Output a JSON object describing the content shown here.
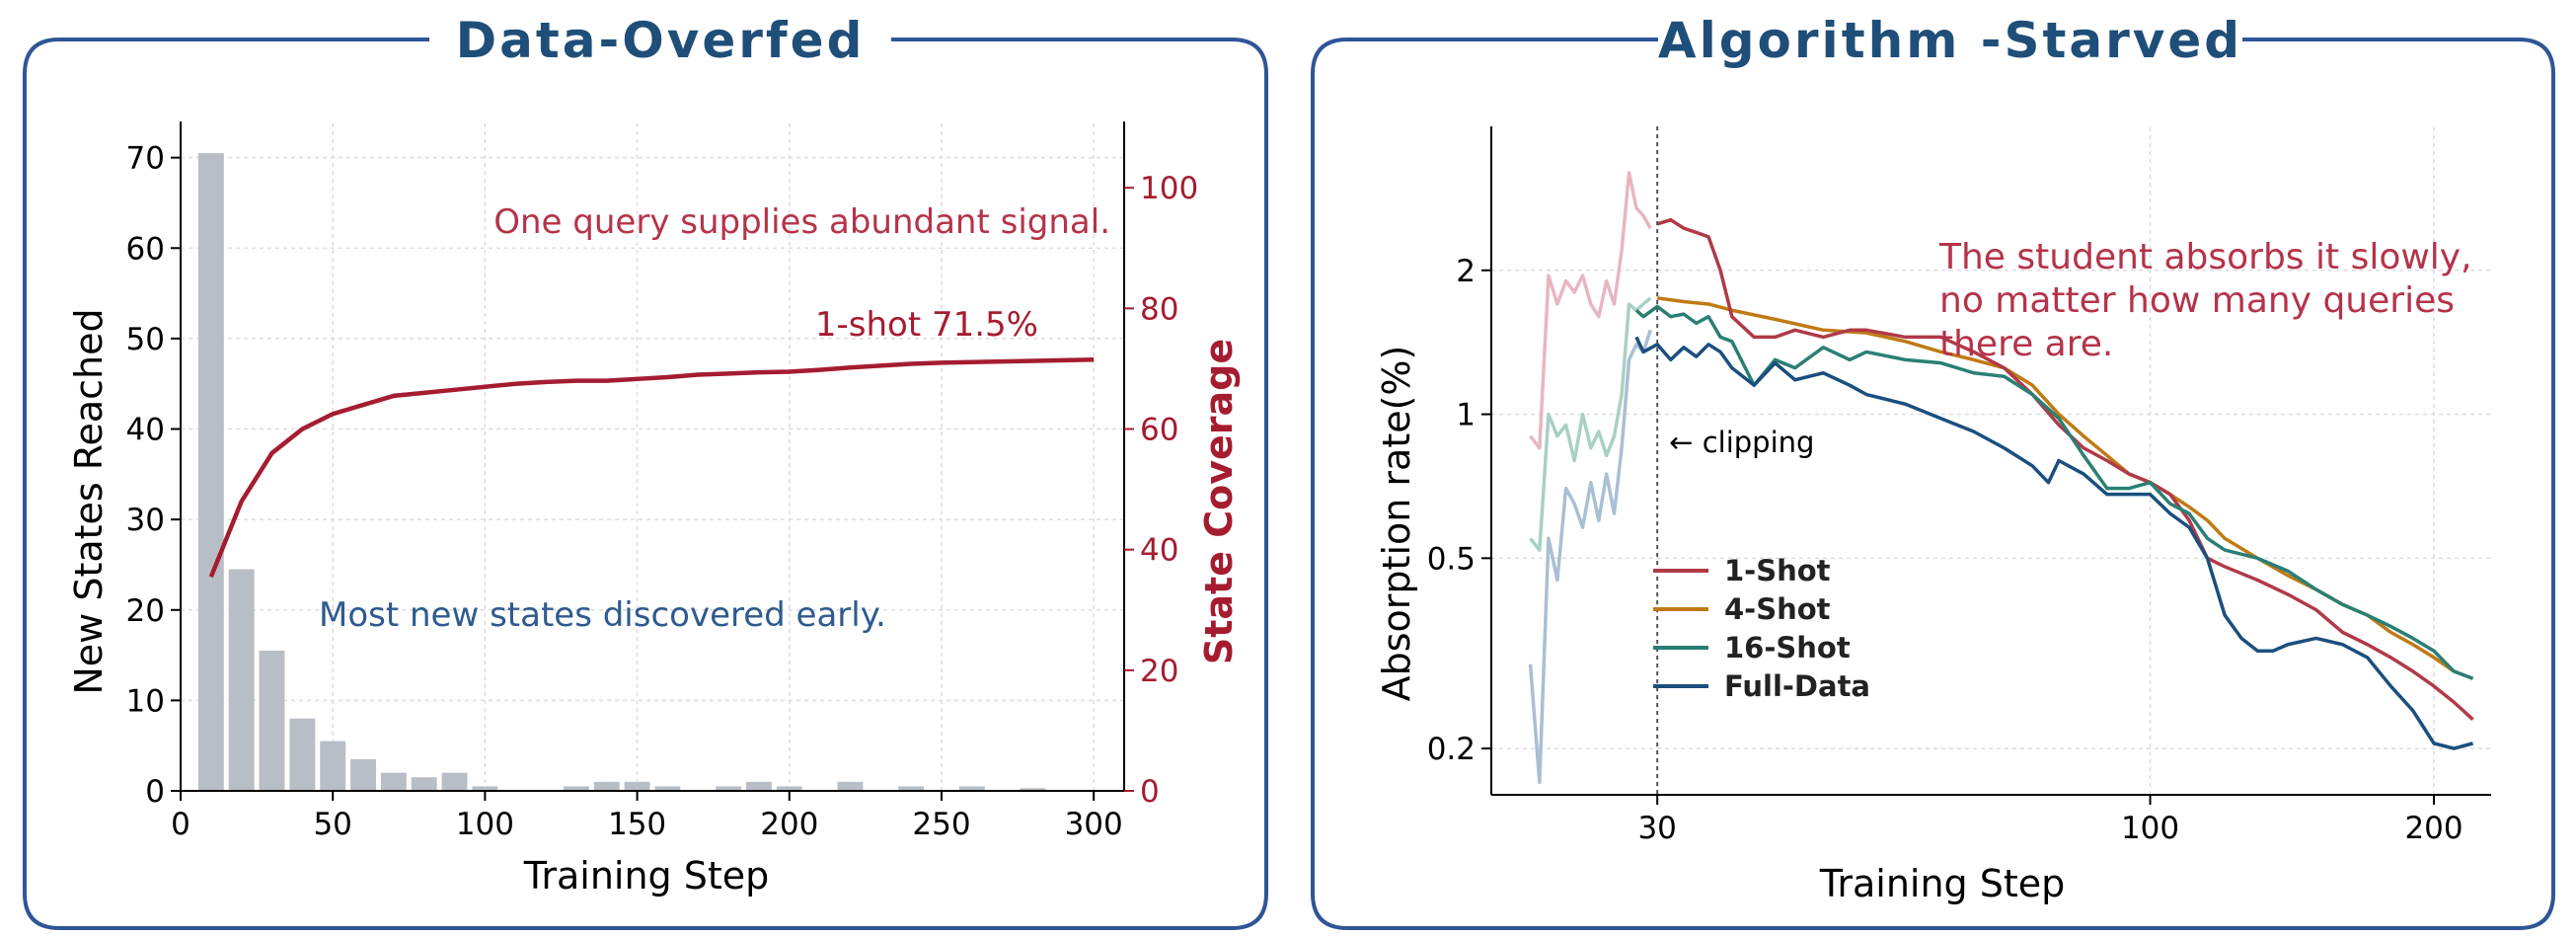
{
  "colors": {
    "frame": "#2f5597",
    "title": "#1f4e79",
    "bars": "#b8bec6",
    "coverage": "#a51c30",
    "annotation_red": "#b5334a",
    "annotation_blue": "#2e5a8f",
    "one_shot": "#b03a48",
    "four_shot": "#c07a14",
    "sixteen_shot": "#2a7f74",
    "full_data": "#1a4f7e",
    "warmup_pink": "#e8b6c0",
    "warmup_green": "#a8d0c4",
    "warmup_blue": "#a9bfd3"
  },
  "chart_data": [
    {
      "type": "bar",
      "title": "Data-Overfed",
      "xlabel": "Training Step",
      "ylabel": "New States Reached",
      "y2label": "State Coverage",
      "xlim": [
        0,
        310
      ],
      "ylim": [
        0,
        74
      ],
      "y2lim": [
        0,
        111
      ],
      "xticks": [
        0,
        50,
        100,
        150,
        200,
        250,
        300
      ],
      "yticks": [
        0,
        10,
        20,
        30,
        40,
        50,
        60,
        70
      ],
      "y2ticks": [
        0,
        20,
        40,
        60,
        80,
        100
      ],
      "grid": true,
      "bars": {
        "name": "New States Reached",
        "x": [
          10,
          20,
          30,
          40,
          50,
          60,
          70,
          80,
          90,
          100,
          110,
          120,
          130,
          140,
          150,
          160,
          170,
          180,
          190,
          200,
          210,
          220,
          230,
          240,
          250,
          260,
          270,
          280,
          290,
          300
        ],
        "values": [
          70.5,
          24.5,
          15.5,
          8,
          5.5,
          3.5,
          2,
          1.5,
          2,
          0.5,
          0,
          0,
          0.5,
          1,
          1,
          0.5,
          0,
          0.5,
          1,
          0.5,
          0,
          1,
          0,
          0.5,
          0,
          0.5,
          0,
          0.3,
          0,
          0
        ]
      },
      "line": {
        "name": "State Coverage",
        "x": [
          10,
          20,
          30,
          40,
          50,
          60,
          70,
          80,
          90,
          100,
          110,
          120,
          130,
          140,
          150,
          160,
          170,
          180,
          190,
          200,
          210,
          220,
          230,
          240,
          250,
          260,
          270,
          280,
          290,
          300
        ],
        "values": [
          35.5,
          48,
          56,
          60,
          62.5,
          64,
          65.5,
          66,
          66.5,
          67,
          67.5,
          67.8,
          68,
          68,
          68.3,
          68.6,
          69,
          69.2,
          69.4,
          69.5,
          69.8,
          70.2,
          70.5,
          70.8,
          71,
          71.1,
          71.2,
          71.3,
          71.4,
          71.5
        ]
      },
      "annotations": {
        "top": "One query supplies abundant signal.",
        "final": "1-shot 71.5%",
        "early": "Most new states discovered early."
      }
    },
    {
      "type": "line",
      "title": "Algorithm -Starved",
      "xlabel": "Training Step",
      "ylabel": "Absorption rate(%)",
      "y_scale": "log",
      "x_scale": "log",
      "xlim": [
        20,
        230
      ],
      "ylim": [
        0.16,
        4.0
      ],
      "xticks": [
        30,
        100,
        200
      ],
      "yticks": [
        0.2,
        0.5,
        1,
        2
      ],
      "ytick_labels": [
        "0.2",
        "0.5",
        "1",
        "2"
      ],
      "grid": true,
      "clip_step": 30,
      "clip_label": "← clipping",
      "legend_position": "lower-left",
      "series": [
        {
          "name": "1-Shot",
          "x": [
            30,
            31,
            32,
            33,
            34,
            35,
            36,
            38,
            40,
            42,
            45,
            48,
            50,
            55,
            60,
            65,
            70,
            75,
            80,
            85,
            90,
            95,
            100,
            105,
            110,
            115,
            120,
            130,
            140,
            150,
            160,
            170,
            180,
            190,
            200,
            210,
            220
          ],
          "values": [
            2.5,
            2.55,
            2.45,
            2.4,
            2.35,
            2.0,
            1.6,
            1.45,
            1.45,
            1.5,
            1.45,
            1.5,
            1.5,
            1.45,
            1.45,
            1.35,
            1.25,
            1.1,
            0.95,
            0.85,
            0.8,
            0.75,
            0.72,
            0.68,
            0.6,
            0.5,
            0.48,
            0.45,
            0.42,
            0.39,
            0.35,
            0.33,
            0.31,
            0.29,
            0.27,
            0.25,
            0.23
          ]
        },
        {
          "name": "4-Shot",
          "x": [
            30,
            32,
            34,
            36,
            40,
            45,
            50,
            55,
            60,
            65,
            70,
            75,
            80,
            85,
            90,
            95,
            100,
            105,
            110,
            115,
            120,
            130,
            140,
            150,
            160,
            170,
            180,
            190,
            200,
            210,
            220
          ],
          "values": [
            1.75,
            1.72,
            1.7,
            1.65,
            1.58,
            1.5,
            1.48,
            1.42,
            1.35,
            1.3,
            1.25,
            1.15,
            1.0,
            0.9,
            0.82,
            0.75,
            0.72,
            0.68,
            0.64,
            0.6,
            0.55,
            0.5,
            0.46,
            0.43,
            0.4,
            0.38,
            0.35,
            0.33,
            0.31,
            0.29,
            0.28
          ]
        },
        {
          "name": "16-Shot",
          "x": [
            28.5,
            29,
            30,
            31,
            32,
            33,
            34,
            35,
            36,
            38,
            40,
            42,
            45,
            48,
            50,
            55,
            60,
            65,
            70,
            75,
            80,
            85,
            90,
            95,
            100,
            105,
            110,
            115,
            120,
            130,
            140,
            150,
            160,
            170,
            180,
            190,
            200,
            210,
            220
          ],
          "values": [
            1.65,
            1.6,
            1.68,
            1.6,
            1.62,
            1.55,
            1.6,
            1.45,
            1.42,
            1.15,
            1.3,
            1.25,
            1.38,
            1.3,
            1.35,
            1.3,
            1.28,
            1.22,
            1.2,
            1.1,
            0.98,
            0.82,
            0.7,
            0.7,
            0.72,
            0.65,
            0.62,
            0.55,
            0.52,
            0.5,
            0.47,
            0.43,
            0.4,
            0.38,
            0.36,
            0.34,
            0.32,
            0.29,
            0.28
          ]
        },
        {
          "name": "Full-Data",
          "x": [
            28.5,
            29,
            30,
            31,
            32,
            33,
            34,
            35,
            36,
            38,
            40,
            42,
            45,
            48,
            50,
            55,
            60,
            65,
            70,
            75,
            78,
            80,
            85,
            90,
            95,
            100,
            105,
            110,
            115,
            120,
            125,
            130,
            135,
            140,
            150,
            160,
            170,
            180,
            190,
            200,
            210,
            220
          ],
          "values": [
            1.45,
            1.35,
            1.4,
            1.3,
            1.38,
            1.32,
            1.4,
            1.35,
            1.25,
            1.15,
            1.28,
            1.18,
            1.22,
            1.15,
            1.1,
            1.05,
            0.98,
            0.92,
            0.85,
            0.78,
            0.72,
            0.8,
            0.75,
            0.68,
            0.68,
            0.68,
            0.62,
            0.58,
            0.5,
            0.38,
            0.34,
            0.32,
            0.32,
            0.33,
            0.34,
            0.33,
            0.31,
            0.27,
            0.24,
            0.205,
            0.2,
            0.205
          ]
        }
      ],
      "warmup": [
        {
          "x": [
            22,
            22.5,
            23,
            23.5,
            24,
            24.5,
            25,
            25.5,
            26,
            26.5,
            27,
            27.5,
            28,
            28.5,
            29,
            29.5
          ],
          "values": [
            0.9,
            0.85,
            1.95,
            1.7,
            1.9,
            1.8,
            1.95,
            1.7,
            1.6,
            1.9,
            1.7,
            2.2,
            3.2,
            2.7,
            2.6,
            2.45
          ]
        },
        {
          "x": [
            22,
            22.5,
            23,
            23.5,
            24,
            24.5,
            25,
            25.5,
            26,
            26.5,
            27,
            27.5,
            28,
            28.5,
            29,
            29.5
          ],
          "values": [
            0.55,
            0.52,
            1.0,
            0.9,
            0.95,
            0.8,
            1.0,
            0.85,
            0.92,
            0.82,
            0.9,
            1.1,
            1.7,
            1.65,
            1.7,
            1.75
          ]
        },
        {
          "x": [
            22,
            22.5,
            23,
            23.5,
            24,
            24.5,
            25,
            25.5,
            26,
            26.5,
            27,
            27.5,
            28,
            28.5,
            29,
            29.5
          ],
          "values": [
            0.3,
            0.17,
            0.55,
            0.45,
            0.7,
            0.65,
            0.58,
            0.72,
            0.6,
            0.75,
            0.62,
            0.85,
            1.3,
            1.4,
            1.35,
            1.5
          ]
        }
      ],
      "annotation": [
        "The student absorbs it slowly,",
        "no matter how many queries",
        "there are."
      ]
    }
  ]
}
